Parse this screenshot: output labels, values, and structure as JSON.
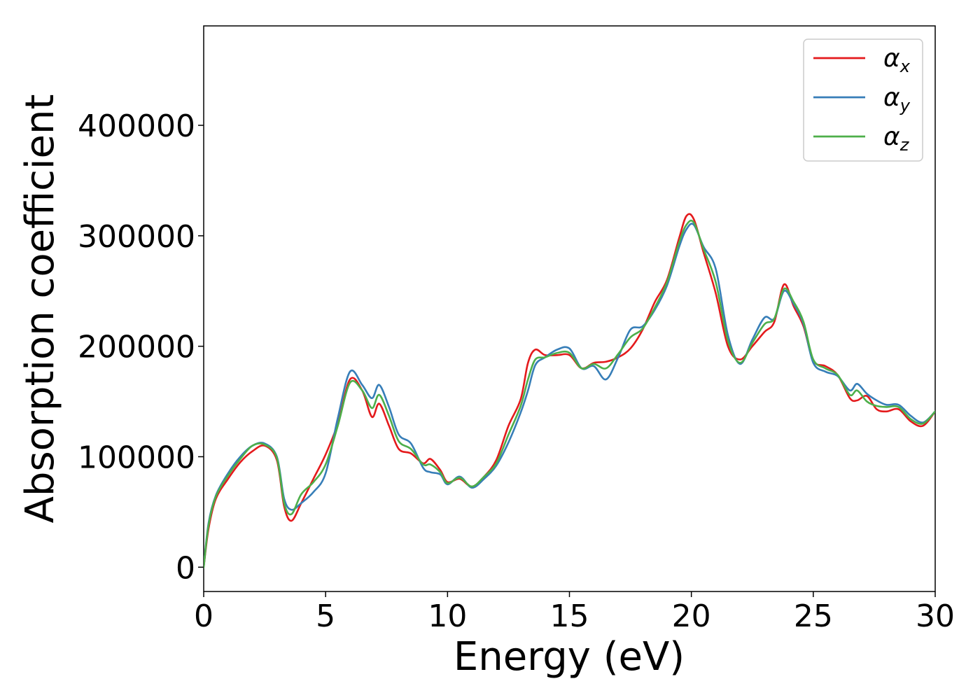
{
  "chart_data": {
    "type": "line",
    "title": "",
    "xlabel": "Energy (eV)",
    "ylabel": "Absorption coefficient",
    "xlim": [
      0,
      30
    ],
    "ylim": [
      -22000,
      490000
    ],
    "xticks": [
      0,
      5,
      10,
      15,
      20,
      25,
      30
    ],
    "xtick_labels": [
      "0",
      "5",
      "10",
      "15",
      "20",
      "25",
      "30"
    ],
    "yticks": [
      0,
      100000,
      200000,
      300000,
      400000
    ],
    "ytick_labels": [
      "0",
      "100000",
      "200000",
      "300000",
      "400000"
    ],
    "grid": false,
    "legend_position": "top-right",
    "series": [
      {
        "name": "α",
        "subscript": "x",
        "color": "#e41a1c",
        "x": [
          0,
          0.2,
          0.5,
          1,
          1.5,
          2,
          2.5,
          3,
          3.3,
          3.6,
          4,
          4.5,
          5,
          5.5,
          6,
          6.5,
          6.9,
          7.2,
          7.6,
          8,
          8.5,
          9,
          9.3,
          9.7,
          10,
          10.5,
          11,
          11.5,
          12,
          12.5,
          13,
          13.3,
          13.6,
          14,
          14.5,
          15,
          15.5,
          16,
          16.5,
          17,
          17.5,
          18,
          18.5,
          19,
          19.5,
          19.8,
          20.1,
          20.5,
          21,
          21.5,
          22,
          22.5,
          23,
          23.4,
          23.8,
          24.2,
          24.6,
          25,
          25.5,
          26,
          26.5,
          26.8,
          27.2,
          27.6,
          28,
          28.5,
          29,
          29.5,
          30
        ],
        "y": [
          0,
          35000,
          62000,
          80000,
          95000,
          105000,
          110000,
          97000,
          55000,
          42000,
          58000,
          80000,
          102000,
          130000,
          170000,
          160000,
          136000,
          148000,
          128000,
          107000,
          103000,
          94000,
          98000,
          88000,
          77000,
          80000,
          73000,
          82000,
          97000,
          128000,
          152000,
          185000,
          197000,
          192000,
          192000,
          192000,
          180000,
          185000,
          186000,
          190000,
          198000,
          215000,
          240000,
          260000,
          298000,
          318000,
          315000,
          285000,
          248000,
          200000,
          188000,
          200000,
          213000,
          222000,
          256000,
          236000,
          218000,
          187000,
          182000,
          174000,
          153000,
          151000,
          155000,
          143000,
          141000,
          143000,
          132000,
          128000,
          141000
        ]
      },
      {
        "name": "α",
        "subscript": "y",
        "color": "#377eb8",
        "x": [
          0,
          0.2,
          0.5,
          1,
          1.5,
          2,
          2.5,
          3,
          3.3,
          3.6,
          4,
          4.5,
          5,
          5.5,
          6,
          6.5,
          6.9,
          7.2,
          7.6,
          8,
          8.5,
          9,
          9.3,
          9.7,
          10,
          10.5,
          11,
          11.5,
          12,
          12.5,
          13,
          13.3,
          13.6,
          14,
          14.5,
          15,
          15.5,
          16,
          16.5,
          17,
          17.5,
          18,
          18.5,
          19,
          19.5,
          19.8,
          20.1,
          20.5,
          21,
          21.5,
          22,
          22.5,
          23,
          23.4,
          23.8,
          24.2,
          24.6,
          25,
          25.5,
          26,
          26.5,
          26.8,
          27.2,
          27.6,
          28,
          28.5,
          29,
          29.5,
          30
        ],
        "y": [
          0,
          40000,
          65000,
          85000,
          100000,
          110000,
          112000,
          100000,
          62000,
          52000,
          58000,
          68000,
          85000,
          135000,
          177000,
          165000,
          153000,
          165000,
          145000,
          120000,
          112000,
          90000,
          86000,
          84000,
          75000,
          82000,
          72000,
          80000,
          92000,
          113000,
          140000,
          160000,
          183000,
          190000,
          197000,
          198000,
          180000,
          182000,
          170000,
          190000,
          215000,
          218000,
          233000,
          255000,
          290000,
          306000,
          310000,
          290000,
          270000,
          210000,
          184000,
          206000,
          226000,
          225000,
          250000,
          238000,
          220000,
          185000,
          177000,
          173000,
          160000,
          166000,
          157000,
          151000,
          147000,
          147000,
          137000,
          131000,
          141000
        ]
      },
      {
        "name": "α",
        "subscript": "z",
        "color": "#4daf4a",
        "x": [
          0,
          0.2,
          0.5,
          1,
          1.5,
          2,
          2.5,
          3,
          3.3,
          3.6,
          4,
          4.5,
          5,
          5.5,
          6,
          6.5,
          6.9,
          7.2,
          7.6,
          8,
          8.5,
          9,
          9.3,
          9.7,
          10,
          10.5,
          11,
          11.5,
          12,
          12.5,
          13,
          13.3,
          13.6,
          14,
          14.5,
          15,
          15.5,
          16,
          16.5,
          17,
          17.5,
          18,
          18.5,
          19,
          19.5,
          19.8,
          20.1,
          20.5,
          21,
          21.5,
          22,
          22.5,
          23,
          23.4,
          23.8,
          24.2,
          24.6,
          25,
          25.5,
          26,
          26.5,
          26.8,
          27.2,
          27.6,
          28,
          28.5,
          29,
          29.5,
          30
        ],
        "y": [
          0,
          38000,
          64000,
          83000,
          98000,
          110000,
          111000,
          99000,
          58000,
          48000,
          66000,
          77000,
          93000,
          128000,
          167000,
          160000,
          144000,
          156000,
          137000,
          114000,
          107000,
          93000,
          93000,
          86000,
          76000,
          81000,
          73000,
          82000,
          94000,
          120000,
          146000,
          170000,
          188000,
          190000,
          194000,
          194000,
          180000,
          184000,
          180000,
          193000,
          208000,
          216000,
          235000,
          258000,
          294000,
          310000,
          312000,
          288000,
          258000,
          205000,
          185000,
          203000,
          220000,
          225000,
          252000,
          240000,
          222000,
          188000,
          180000,
          174000,
          156000,
          160000,
          150000,
          146000,
          145000,
          145000,
          134000,
          130000,
          141000
        ]
      }
    ]
  }
}
